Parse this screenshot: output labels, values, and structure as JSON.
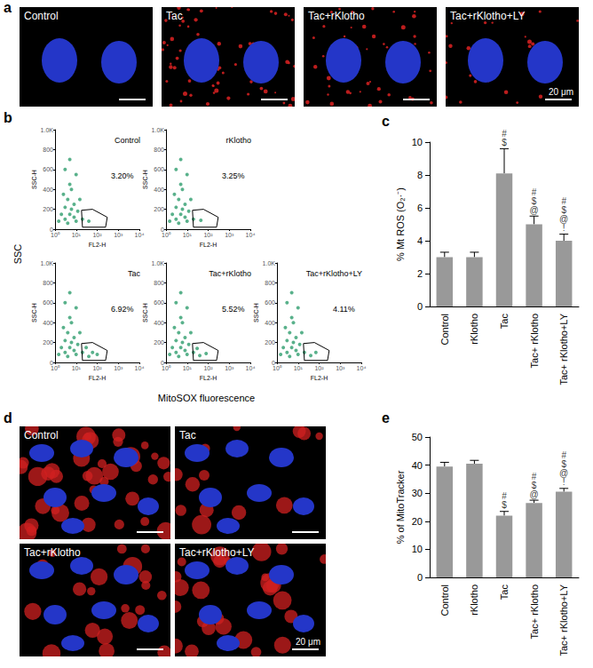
{
  "panel_letters": [
    "a",
    "b",
    "c",
    "d",
    "e"
  ],
  "images": [
    {
      "labels": [
        "Control",
        "Tac",
        "Tac+rKlotho",
        "Tac+rKlotho+LY"
      ],
      "scale_bar": "20 μm"
    },
    {
      "labels": [
        "Control",
        "Tac",
        "Tac+rKlotho",
        "Tac+rKlotho+LY"
      ],
      "scale_bar": "20 μm"
    }
  ],
  "flow_axis_labels": {
    "x": "MitoSOX fluorescence",
    "y": "SSC"
  },
  "chart_data": [
    {
      "type": "scatter",
      "title": "Control",
      "x_label": "FL2-H",
      "y_label": "SSC-H",
      "log": "x",
      "xlim": [
        1,
        10000
      ],
      "xticks": [
        {
          "value": 1,
          "label": "10⁰"
        },
        {
          "value": 10,
          "label": "10¹"
        },
        {
          "value": 100,
          "label": "10²"
        },
        {
          "value": 1000,
          "label": "10³"
        },
        {
          "value": 10000,
          "label": "10⁴"
        }
      ],
      "ylim": [
        0,
        1000
      ],
      "yticks": [
        0,
        200,
        400,
        600,
        800,
        {
          "value": 1000,
          "label": "1.0K"
        }
      ],
      "color": "#2f9e6e",
      "x": [
        1.5,
        2,
        2.5,
        3,
        3,
        4,
        4,
        5,
        5,
        6,
        6,
        8,
        8,
        10,
        10,
        12,
        15,
        20,
        3,
        5,
        40
      ],
      "values": [
        80,
        150,
        350,
        100,
        220,
        60,
        300,
        150,
        450,
        200,
        400,
        120,
        250,
        80,
        550,
        180,
        300,
        100,
        600,
        700,
        80
      ],
      "gate": {
        "x": [
          18,
          60,
          300,
          250,
          20,
          18
        ],
        "y": [
          190,
          200,
          120,
          20,
          20,
          190
        ]
      },
      "annotation": "3.20%"
    },
    {
      "type": "scatter",
      "title": "rKlotho",
      "x_label": "FL2-H",
      "y_label": "SSC-H",
      "log": "x",
      "xlim": [
        1,
        10000
      ],
      "xticks": [
        {
          "value": 1,
          "label": "10⁰"
        },
        {
          "value": 10,
          "label": "10¹"
        },
        {
          "value": 100,
          "label": "10²"
        },
        {
          "value": 1000,
          "label": "10³"
        },
        {
          "value": 10000,
          "label": "10⁴"
        }
      ],
      "ylim": [
        0,
        1000
      ],
      "yticks": [
        0,
        200,
        400,
        600,
        800,
        {
          "value": 1000,
          "label": "1.0K"
        }
      ],
      "color": "#2f9e6e",
      "x": [
        1.5,
        2,
        2.5,
        3,
        3,
        4,
        4,
        5,
        5,
        6,
        6,
        8,
        8,
        10,
        10,
        12,
        15,
        20,
        3,
        5,
        45
      ],
      "values": [
        80,
        150,
        350,
        100,
        220,
        60,
        300,
        150,
        450,
        200,
        400,
        120,
        250,
        80,
        550,
        180,
        300,
        100,
        600,
        700,
        90
      ],
      "gate": {
        "x": [
          18,
          60,
          300,
          250,
          20,
          18
        ],
        "y": [
          190,
          200,
          120,
          20,
          20,
          190
        ]
      },
      "annotation": "3.25%"
    },
    {
      "type": "scatter",
      "title": "Tac",
      "x_label": "FL2-H",
      "y_label": "SSC-H",
      "log": "x",
      "xlim": [
        1,
        10000
      ],
      "xticks": [
        {
          "value": 1,
          "label": "10⁰"
        },
        {
          "value": 10,
          "label": "10¹"
        },
        {
          "value": 100,
          "label": "10²"
        },
        {
          "value": 1000,
          "label": "10³"
        },
        {
          "value": 10000,
          "label": "10⁴"
        }
      ],
      "ylim": [
        0,
        1000
      ],
      "yticks": [
        0,
        200,
        400,
        600,
        800,
        {
          "value": 1000,
          "label": "1.0K"
        }
      ],
      "color": "#2f9e6e",
      "x": [
        1.5,
        2,
        2.5,
        3,
        3,
        4,
        4,
        5,
        5,
        6,
        6,
        8,
        8,
        10,
        10,
        12,
        15,
        20,
        3,
        5,
        40,
        60,
        100,
        30
      ],
      "values": [
        80,
        150,
        350,
        100,
        220,
        60,
        300,
        150,
        450,
        200,
        400,
        120,
        250,
        80,
        550,
        180,
        300,
        100,
        600,
        700,
        60,
        100,
        80,
        150
      ],
      "gate": {
        "x": [
          18,
          60,
          300,
          250,
          20,
          18
        ],
        "y": [
          190,
          200,
          120,
          20,
          20,
          190
        ]
      },
      "annotation": "6.92%"
    },
    {
      "type": "scatter",
      "title": "Tac+rKlotho",
      "x_label": "FL2-H",
      "y_label": "SSC-H",
      "log": "x",
      "xlim": [
        1,
        10000
      ],
      "xticks": [
        {
          "value": 1,
          "label": "10⁰"
        },
        {
          "value": 10,
          "label": "10¹"
        },
        {
          "value": 100,
          "label": "10²"
        },
        {
          "value": 1000,
          "label": "10³"
        },
        {
          "value": 10000,
          "label": "10⁴"
        }
      ],
      "ylim": [
        0,
        1000
      ],
      "yticks": [
        0,
        200,
        400,
        600,
        800,
        {
          "value": 1000,
          "label": "1.0K"
        }
      ],
      "color": "#2f9e6e",
      "x": [
        1.5,
        2,
        2.5,
        3,
        3,
        4,
        4,
        5,
        5,
        6,
        6,
        8,
        8,
        10,
        10,
        12,
        15,
        20,
        3,
        5,
        40,
        80,
        30
      ],
      "values": [
        80,
        150,
        350,
        100,
        220,
        60,
        300,
        150,
        450,
        200,
        400,
        120,
        250,
        80,
        550,
        180,
        300,
        100,
        600,
        700,
        70,
        90,
        140
      ],
      "gate": {
        "x": [
          18,
          60,
          300,
          250,
          20,
          18
        ],
        "y": [
          190,
          200,
          120,
          20,
          20,
          190
        ]
      },
      "annotation": "5.52%"
    },
    {
      "type": "scatter",
      "title": "Tac+rKlotho+LY",
      "x_label": "FL2-H",
      "y_label": "SSC-H",
      "log": "x",
      "xlim": [
        1,
        10000
      ],
      "xticks": [
        {
          "value": 1,
          "label": "10⁰"
        },
        {
          "value": 10,
          "label": "10¹"
        },
        {
          "value": 100,
          "label": "10²"
        },
        {
          "value": 1000,
          "label": "10³"
        },
        {
          "value": 10000,
          "label": "10⁴"
        }
      ],
      "ylim": [
        0,
        1000
      ],
      "yticks": [
        0,
        200,
        400,
        600,
        800,
        {
          "value": 1000,
          "label": "1.0K"
        }
      ],
      "color": "#2f9e6e",
      "x": [
        1.5,
        2,
        2.5,
        3,
        3,
        4,
        4,
        5,
        5,
        6,
        6,
        8,
        8,
        10,
        10,
        12,
        15,
        20,
        3,
        5,
        40,
        70
      ],
      "values": [
        80,
        150,
        350,
        100,
        220,
        60,
        300,
        150,
        450,
        200,
        400,
        120,
        250,
        80,
        550,
        180,
        300,
        100,
        600,
        700,
        70,
        100
      ],
      "gate": {
        "x": [
          18,
          60,
          300,
          250,
          20,
          18
        ],
        "y": [
          190,
          200,
          120,
          20,
          20,
          190
        ]
      },
      "annotation": "4.11%"
    },
    {
      "type": "bar",
      "y_label": "% Mt ROS (O₂·⁻)",
      "categories": [
        "Control",
        "rKlotho",
        "Tac",
        "Tac+ rKlotho",
        "Tac+ rKlotho+LY"
      ],
      "values": [
        3.0,
        3.0,
        8.1,
        5.0,
        4.0
      ],
      "errors": [
        0.3,
        0.3,
        1.5,
        0.5,
        0.4
      ],
      "annotations": [
        null,
        null,
        [
          "#",
          "$"
        ],
        [
          "#",
          "$",
          "@"
        ],
        [
          "#",
          "$",
          "@",
          "!"
        ]
      ],
      "color": "#999999",
      "ylim": [
        0,
        10
      ],
      "yticks": [
        0,
        2,
        4,
        6,
        8,
        10
      ],
      "grid": false
    },
    {
      "type": "bar",
      "y_label": "% of MitoTracker",
      "categories": [
        "Control",
        "rKlotho",
        "Tac",
        "Tac+ rKlotho",
        "Tac+ rKlotho+LY"
      ],
      "values": [
        39.5,
        40.5,
        22,
        26.5,
        30.5
      ],
      "errors": [
        1.5,
        1.2,
        1.5,
        1,
        1.2
      ],
      "annotations": [
        null,
        null,
        [
          "#",
          "$"
        ],
        [
          "#",
          "$",
          "@"
        ],
        [
          "#",
          "$",
          "@",
          "!"
        ]
      ],
      "color": "#999999",
      "ylim": [
        0,
        50
      ],
      "yticks": [
        0,
        10,
        20,
        30,
        40,
        50
      ],
      "grid": false
    }
  ]
}
